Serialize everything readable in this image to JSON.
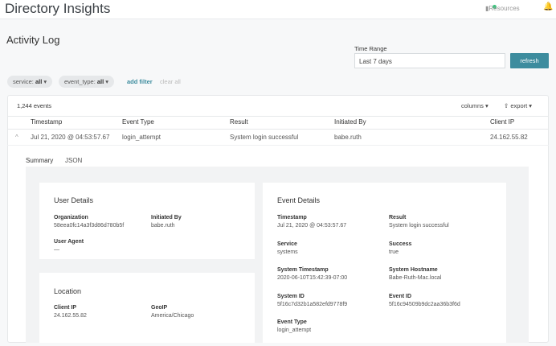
{
  "header": {
    "title": "Directory Insights",
    "resources": "Resources"
  },
  "page": {
    "title": "Activity Log"
  },
  "time_range": {
    "label": "Time Range",
    "value": "Last 7 days",
    "refresh": "refresh"
  },
  "filters": {
    "service_key": "service:",
    "service_val": "all",
    "event_key": "event_type:",
    "event_val": "all",
    "add": "add filter",
    "clear": "clear all"
  },
  "table": {
    "count": "1,244 events",
    "columns": "columns ▾",
    "export": "export ▾",
    "headers": [
      "Timestamp",
      "Event Type",
      "Result",
      "Initiated By",
      "Client IP"
    ],
    "row": [
      "Jul 21, 2020 @ 04:53:57.67",
      "login_attempt",
      "System login successful",
      "babe.ruth",
      "24.162.55.82"
    ]
  },
  "tabs": [
    "Summary",
    "JSON"
  ],
  "user": {
    "title": "User Details",
    "org_l": "Organization",
    "org_v": "58eea0fc14a3f3d86d780b5f",
    "init_l": "Initiated By",
    "init_v": "babe.ruth",
    "ua_l": "User Agent",
    "ua_v": "—"
  },
  "location": {
    "title": "Location",
    "ip_l": "Client IP",
    "ip_v": "24.162.55.82",
    "geo_l": "GeoIP",
    "geo_v": "America/Chicago"
  },
  "event": {
    "title": "Event Details",
    "fields": [
      {
        "l": "Timestamp",
        "v": "Jul 21, 2020 @ 04:53:57.67"
      },
      {
        "l": "Result",
        "v": "System login successful"
      },
      {
        "l": "Service",
        "v": "systems"
      },
      {
        "l": "Success",
        "v": "true"
      },
      {
        "l": "System Timestamp",
        "v": "2020-06-10T15:42:39-07:00"
      },
      {
        "l": "System Hostname",
        "v": "Babe-Ruth-Mac.local"
      },
      {
        "l": "System ID",
        "v": "5f16c7d32b1a582efd9778f9"
      },
      {
        "l": "Event ID",
        "v": "5f16c94509b9dc2aa36b3f6d"
      },
      {
        "l": "Event Type",
        "v": "login_attempt"
      }
    ]
  }
}
